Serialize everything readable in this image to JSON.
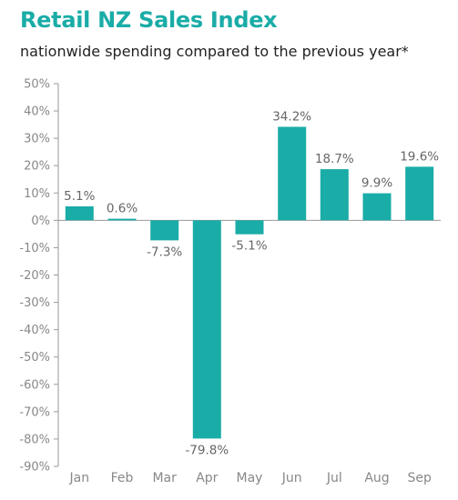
{
  "header": {
    "title": "Retail NZ Sales Index",
    "subtitle": "nationwide spending compared to the previous year*"
  },
  "colors": {
    "bar": "#1aaca7",
    "title": "#1aaca7",
    "axis": "#9a9a9a"
  },
  "chart_data": {
    "type": "bar",
    "title": "Retail NZ Sales Index",
    "subtitle": "nationwide spending compared to the previous year*",
    "categories": [
      "Jan",
      "Feb",
      "Mar",
      "Apr",
      "May",
      "Jun",
      "Jul",
      "Aug",
      "Sep"
    ],
    "values": [
      5.1,
      0.6,
      -7.3,
      -79.8,
      -5.1,
      34.2,
      18.7,
      9.9,
      19.6
    ],
    "data_labels": [
      "5.1%",
      "0.6%",
      "-7.3%",
      "-79.8%",
      "-5.1%",
      "34.2%",
      "18.7%",
      "9.9%",
      "19.6%"
    ],
    "ylim": [
      -90,
      50
    ],
    "yticks": [
      50,
      40,
      30,
      20,
      10,
      0,
      -10,
      -20,
      -30,
      -40,
      -50,
      -60,
      -70,
      -80,
      -90
    ],
    "ytick_labels": [
      "50%",
      "40%",
      "30%",
      "20%",
      "10%",
      "0%",
      "-10%",
      "-20%",
      "-30%",
      "-40%",
      "-50%",
      "-60%",
      "-70%",
      "-80%",
      "-90%"
    ],
    "grid": false,
    "legend": "none"
  }
}
